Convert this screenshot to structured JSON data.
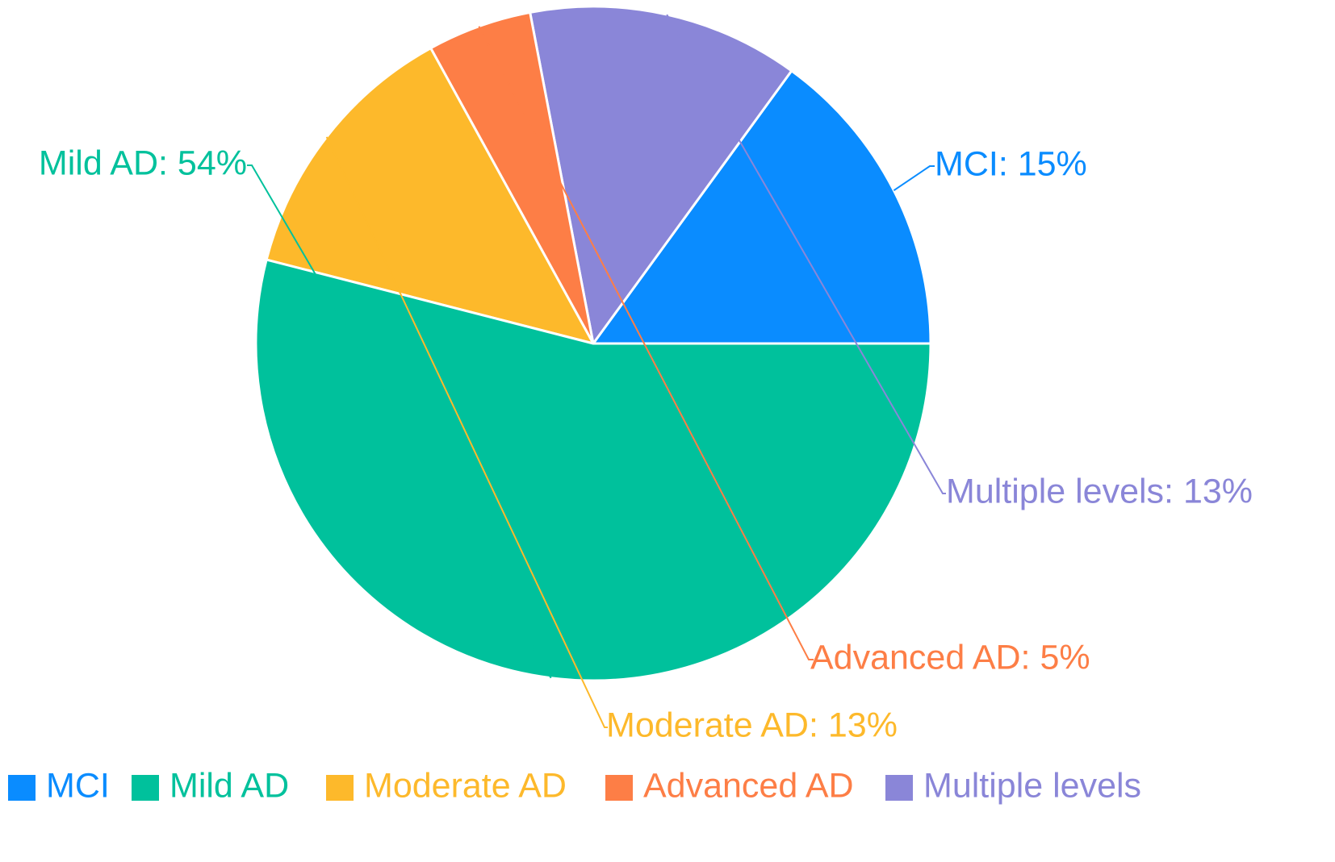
{
  "chart_data": {
    "type": "pie",
    "slices": [
      {
        "label": "MCI",
        "value": 15,
        "display": "MCI: 15%",
        "color": "#0a8cff"
      },
      {
        "label": "Multiple levels",
        "value": 13,
        "display": "Multiple levels: 13%",
        "color": "#8a86d8"
      },
      {
        "label": "Advanced AD",
        "value": 5,
        "display": "Advanced AD: 5%",
        "color": "#fd7e46"
      },
      {
        "label": "Moderate AD",
        "value": 13,
        "display": "Moderate AD: 13%",
        "color": "#fdb92b"
      },
      {
        "label": "Mild AD",
        "value": 54,
        "display": "Mild AD: 54%",
        "color": "#00c19c"
      }
    ],
    "legend": {
      "placement": "bottom-left",
      "items": [
        {
          "label": "MCI",
          "color": "#0a8cff"
        },
        {
          "label": "Mild AD",
          "color": "#00c19c"
        },
        {
          "label": "Moderate AD",
          "color": "#fdb92b"
        },
        {
          "label": "Advanced AD",
          "color": "#fd7e46"
        },
        {
          "label": "Multiple levels",
          "color": "#8a86d8"
        }
      ]
    }
  }
}
